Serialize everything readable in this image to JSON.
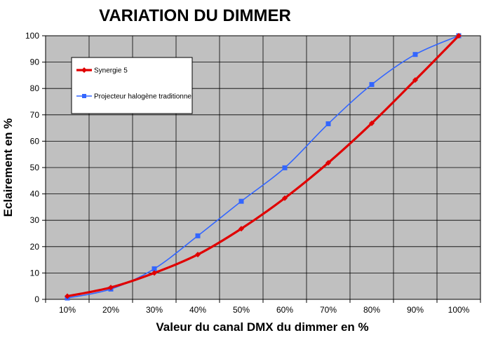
{
  "chart_data": {
    "type": "line",
    "title": "VARIATION DU DIMMER",
    "xlabel": "Valeur du canal DMX du dimmer en %",
    "ylabel": "Eclairement en %",
    "categories": [
      "10%",
      "20%",
      "30%",
      "40%",
      "50%",
      "60%",
      "70%",
      "80%",
      "90%",
      "100%"
    ],
    "ylim": [
      0,
      100
    ],
    "yticks": [
      0,
      10,
      20,
      30,
      40,
      50,
      60,
      70,
      80,
      90,
      100
    ],
    "grid": true,
    "legend_position": "top-left",
    "plot_background": "#c0c0c0",
    "series": [
      {
        "name": "Synergie 5",
        "color": "#e00000",
        "marker": "diamond",
        "values": [
          1.2,
          4.5,
          10,
          17,
          26.8,
          38.4,
          51.8,
          66.8,
          83.2,
          100
        ]
      },
      {
        "name": "Projecteur halogène traditionnel",
        "color": "#3366ff",
        "marker": "square",
        "values": [
          0.5,
          3.9,
          11.6,
          24.1,
          37.2,
          49.9,
          66.6,
          81.5,
          92.9,
          100
        ]
      }
    ]
  }
}
